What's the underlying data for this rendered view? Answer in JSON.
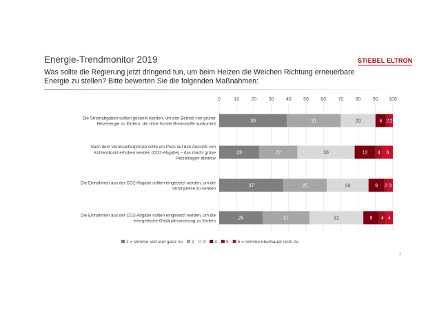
{
  "slide": {
    "title": "Energie-Trendmonitor 2019",
    "logo_text": "STIEBEL ELTRON",
    "question": "Was sollte die Regierung jetzt dringend tun, um beim Heizen die Weichen Richtung erneuerbare Energie zu stellen? Bitte bewerten Sie die folgenden Maßnahmen:",
    "page_number": "1"
  },
  "chart_data": {
    "type": "bar",
    "orientation": "horizontal",
    "stacked": true,
    "xlim": [
      0,
      100
    ],
    "x_ticks": [
      0,
      10,
      20,
      30,
      40,
      50,
      60,
      70,
      80,
      90,
      100
    ],
    "x_axis_position": "top",
    "grid": true,
    "legend_position": "bottom",
    "categories": [
      [
        "Die Stromabgaben sollten gesenkt werden, um den Betrieb von grüner",
        "Heizenergie zu fördern, die ohne fossile Brennstoffe auskommt"
      ],
      [
        "Nach dem Verursacherprinzip sollte ein Preis auf den Ausstoß von",
        "Kohlendioxid erhoben werden (CO2-Abgabe) – das macht grüne",
        "Heizanlagen attraktiv"
      ],
      [
        "Die Einnahmen aus der CO2-Abgabe sollten eingesetzt werden, um die",
        "Strompreise zu senken"
      ],
      [
        "Die Einnahmen aus der CO2-Abgabe sollten eingesetzt werden, um die",
        "energetische Gebäudesanierung zu fördern"
      ]
    ],
    "series": [
      {
        "name": "1 = stimme voll und ganz zu",
        "color": "#7f7f7f",
        "label_color": "#ffffff",
        "values": [
          39,
          23,
          37,
          25
        ]
      },
      {
        "name": "2",
        "color": "#a6a6a6",
        "label_color": "#ffffff",
        "values": [
          31,
          22,
          25,
          27
        ]
      },
      {
        "name": "3",
        "color": "#d9d9d9",
        "label_color": "#404040",
        "values": [
          20,
          33,
          24,
          31
        ]
      },
      {
        "name": "4",
        "color": "#7a0010",
        "label_color": "#ffffff",
        "values": [
          6,
          12,
          9,
          9
        ]
      },
      {
        "name": "5",
        "color": "#a50f1f",
        "label_color": "#ffffff",
        "values": [
          2,
          4,
          2,
          4
        ]
      },
      {
        "name": "6 = stimme überhaupt nicht zu",
        "color": "#c8102e",
        "label_color": "#ffffff",
        "values": [
          2,
          6,
          3,
          4
        ]
      }
    ]
  }
}
